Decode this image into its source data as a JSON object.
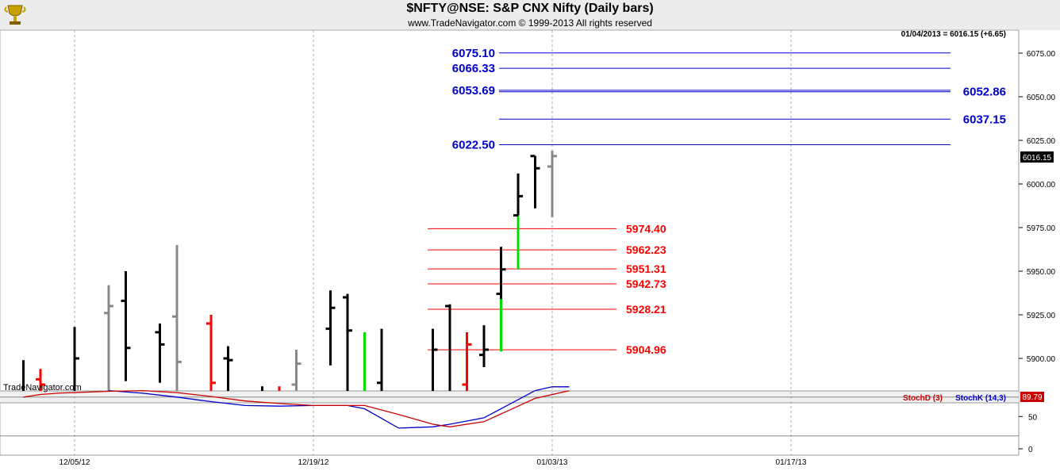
{
  "header": {
    "title": "$NFTY@NSE:  S&P CNX Nifty  (Daily bars)",
    "subtitle": "www.TradeNavigator.com © 1999-2013 All rights reserved",
    "logo_icon": "trophy-icon"
  },
  "readout": "01/04/2013 = 6016.15 (+6.65)",
  "watermark": "TradeNavigator.com",
  "last_price_tag": "6016.15",
  "chart_data": {
    "type": "bar",
    "subtype": "ohlc-daily",
    "price_axis": {
      "ylim": [
        5880,
        6090
      ],
      "ticks": [
        5900,
        5925,
        5950,
        5975,
        6000,
        6025,
        6050,
        6075
      ],
      "tick_labels": [
        "5900.00",
        "5925.00",
        "5950.00",
        "5975.00",
        "6000.00",
        "6025.00",
        "6050.00",
        "6075.00"
      ]
    },
    "date_axis": {
      "labels": [
        "12/05/12",
        "12/19/12",
        "01/03/13",
        "01/17/13"
      ],
      "label_bar_index": [
        3,
        17,
        31,
        45
      ]
    },
    "colors": {
      "up": "#000000",
      "neutral": "#888888",
      "down": "#ff0000",
      "gap": "#00dd00"
    },
    "bars": [
      {
        "i": 0,
        "o": 5870,
        "h": 5899,
        "l": 5860,
        "c": 5880,
        "color": "#000000"
      },
      {
        "i": 1,
        "o": 5888,
        "h": 5894,
        "l": 5860,
        "c": 5885,
        "color": "#ff0000"
      },
      {
        "i": 3,
        "o": 5880,
        "h": 5918,
        "l": 5865,
        "c": 5900,
        "color": "#000000"
      },
      {
        "i": 5,
        "o": 5926,
        "h": 5942,
        "l": 5860,
        "c": 5930,
        "color": "#888888"
      },
      {
        "i": 6,
        "o": 5933,
        "h": 5950,
        "l": 5887,
        "c": 5906,
        "color": "#000000"
      },
      {
        "i": 8,
        "o": 5915,
        "h": 5920,
        "l": 5886,
        "c": 5908,
        "color": "#000000"
      },
      {
        "i": 9,
        "o": 5924,
        "h": 5965,
        "l": 5860,
        "c": 5898,
        "color": "#888888"
      },
      {
        "i": 11,
        "o": 5920,
        "h": 5925,
        "l": 5860,
        "c": 5886,
        "color": "#ff0000"
      },
      {
        "i": 12,
        "o": 5900,
        "h": 5907,
        "l": 5865,
        "c": 5899,
        "color": "#000000"
      },
      {
        "i": 14,
        "o": 5876,
        "h": 5884,
        "l": 5865,
        "c": 5879,
        "color": "#000000"
      },
      {
        "i": 15,
        "o": 5875,
        "h": 5884,
        "l": 5865,
        "c": 5878,
        "color": "#ff0000"
      },
      {
        "i": 16,
        "o": 5885,
        "h": 5905,
        "l": 5865,
        "c": 5897,
        "color": "#888888"
      },
      {
        "i": 18,
        "o": 5917,
        "h": 5939,
        "l": 5896,
        "c": 5929,
        "color": "#000000"
      },
      {
        "i": 19,
        "o": 5935,
        "h": 5937,
        "l": 5870,
        "c": 5916,
        "color": "#000000"
      },
      {
        "i": 21,
        "o": 5886,
        "h": 5917,
        "l": 5875,
        "c": 5881,
        "color": "#000000"
      },
      {
        "i": 24,
        "o": 5875,
        "h": 5917,
        "l": 5872,
        "c": 5905,
        "color": "#000000"
      },
      {
        "i": 25,
        "o": 5930,
        "h": 5931,
        "l": 5870,
        "c": 5880,
        "color": "#000000"
      },
      {
        "i": 26,
        "o": 5885,
        "h": 5915,
        "l": 5868,
        "c": 5908,
        "color": "#ff0000"
      },
      {
        "i": 27,
        "o": 5902,
        "h": 5919,
        "l": 5895,
        "c": 5905,
        "color": "#000000"
      },
      {
        "i": 28,
        "o": 5937,
        "h": 5964,
        "l": 5934,
        "c": 5951,
        "color": "#000000"
      },
      {
        "i": 29,
        "o": 5982,
        "h": 6006,
        "l": 5982,
        "c": 5993,
        "color": "#000000"
      },
      {
        "i": 30,
        "o": 6016,
        "h": 6016,
        "l": 5986,
        "c": 6009,
        "color": "#000000"
      },
      {
        "i": 31,
        "o": 6010,
        "h": 6019,
        "l": 5981,
        "c": 6016,
        "color": "#888888"
      }
    ],
    "gaps": [
      {
        "i": 3,
        "from": 5885,
        "to": 5895
      },
      {
        "i": 18,
        "from": 5896,
        "to": 5910
      },
      {
        "i": 20,
        "from": 5876,
        "to": 5915
      },
      {
        "i": 28,
        "from": 5904,
        "to": 5935
      },
      {
        "i": 29,
        "from": 5951,
        "to": 5982
      }
    ],
    "levels_upper": [
      {
        "value": 6075.1,
        "label": "6075.10",
        "side": "left"
      },
      {
        "value": 6066.33,
        "label": "6066.33",
        "side": "left"
      },
      {
        "value": 6053.69,
        "label": "6053.69",
        "side": "left"
      },
      {
        "value": 6052.86,
        "label": "6052.86",
        "side": "right"
      },
      {
        "value": 6037.15,
        "label": "6037.15",
        "side": "right"
      },
      {
        "value": 6022.5,
        "label": "6022.50",
        "side": "left"
      }
    ],
    "levels_lower": [
      {
        "value": 5974.4,
        "label": "5974.40"
      },
      {
        "value": 5962.23,
        "label": "5962.23"
      },
      {
        "value": 5951.31,
        "label": "5951.31"
      },
      {
        "value": 5942.73,
        "label": "5942.73"
      },
      {
        "value": 5928.21,
        "label": "5928.21"
      },
      {
        "value": 5904.96,
        "label": "5904.96"
      }
    ],
    "level_colors": {
      "upper": "#0000cc",
      "lower": "#ff0000"
    },
    "stochastic": {
      "ylim": [
        0,
        100
      ],
      "ticks": [
        0,
        50
      ],
      "bands": [
        20,
        80
      ],
      "current_value": "89.79",
      "legend": [
        {
          "name": "StochD (3)",
          "color": "#cc0000"
        },
        {
          "name": "StochK (14,3)",
          "color": "#0000cc"
        }
      ],
      "stochD": [
        {
          "i": 0,
          "v": 80
        },
        {
          "i": 1,
          "v": 84
        },
        {
          "i": 2,
          "v": 86
        },
        {
          "i": 5,
          "v": 89
        },
        {
          "i": 7,
          "v": 90
        },
        {
          "i": 9,
          "v": 87
        },
        {
          "i": 11,
          "v": 81
        },
        {
          "i": 13,
          "v": 74
        },
        {
          "i": 15,
          "v": 70
        },
        {
          "i": 17,
          "v": 67
        },
        {
          "i": 19,
          "v": 67
        },
        {
          "i": 20,
          "v": 67
        },
        {
          "i": 22,
          "v": 53
        },
        {
          "i": 24,
          "v": 38
        },
        {
          "i": 25,
          "v": 34
        },
        {
          "i": 27,
          "v": 42
        },
        {
          "i": 28,
          "v": 54
        },
        {
          "i": 30,
          "v": 78
        },
        {
          "i": 32,
          "v": 89.79
        }
      ],
      "stochK": [
        {
          "i": 5,
          "v": 90
        },
        {
          "i": 7,
          "v": 86
        },
        {
          "i": 9,
          "v": 80
        },
        {
          "i": 11,
          "v": 73
        },
        {
          "i": 13,
          "v": 67
        },
        {
          "i": 15,
          "v": 66
        },
        {
          "i": 17,
          "v": 67
        },
        {
          "i": 19,
          "v": 67
        },
        {
          "i": 20,
          "v": 62
        },
        {
          "i": 22,
          "v": 32
        },
        {
          "i": 24,
          "v": 34
        },
        {
          "i": 25,
          "v": 38
        },
        {
          "i": 27,
          "v": 48
        },
        {
          "i": 28,
          "v": 62
        },
        {
          "i": 30,
          "v": 90
        },
        {
          "i": 31,
          "v": 96
        },
        {
          "i": 32,
          "v": 96
        }
      ]
    }
  }
}
